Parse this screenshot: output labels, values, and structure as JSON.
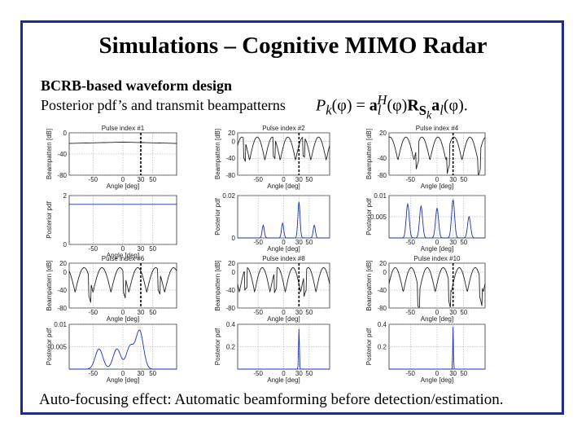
{
  "title": "Simulations – Cognitive MIMO Radar",
  "subtitle_bold": "BCRB-based waveform design",
  "subtitle": "Posterior pdf’s and transmit beampatterns",
  "formula": {
    "lhs_p": "P",
    "lhs_sub": "k",
    "lhs_arg": "(φ) = ",
    "a": "a",
    "a_sup": "H",
    "a_sub": "l",
    "arg1": "(φ)",
    "R": "R",
    "R_sub": "S",
    "R_subsub": "k",
    "a2": "a",
    "a2_sub": "l",
    "arg2": "(φ)",
    "tail": "."
  },
  "caption": "Auto-focusing effect: Automatic beamforming before detection/estimation.",
  "chart_data": [
    {
      "id": "p1-beam",
      "type": "line",
      "title": "Pulse index #1",
      "xlabel": "Angle [deg]",
      "ylabel": "Beampattern [dB]",
      "xlim": [
        -90,
        90
      ],
      "ylim": [
        -80,
        0
      ],
      "xticks": [
        -50,
        0,
        30,
        50
      ],
      "yticks": [
        -80,
        -40,
        0
      ],
      "grid": true
    },
    {
      "id": "p2-beam",
      "type": "line",
      "title": "Pulse index #2",
      "xlabel": "Angle [deg]",
      "ylabel": "Beampattern [dB]",
      "xlim": [
        -90,
        90
      ],
      "ylim": [
        -80,
        20
      ],
      "xticks": [
        -50,
        0,
        30,
        50
      ],
      "yticks": [
        -80,
        -40,
        0,
        20
      ],
      "grid": true
    },
    {
      "id": "p4-beam",
      "type": "line",
      "title": "Pulse index #4",
      "xlabel": "Angle [deg]",
      "ylabel": "Beampattern [dB]",
      "xlim": [
        -90,
        90
      ],
      "ylim": [
        -80,
        20
      ],
      "xticks": [
        -50,
        0,
        30,
        50
      ],
      "yticks": [
        -80,
        -40,
        20
      ],
      "grid": true
    },
    {
      "id": "p1-pdf",
      "type": "line",
      "title": "",
      "xlabel": "Angle [deg]",
      "ylabel": "Posterior pdf",
      "xlim": [
        -90,
        90
      ],
      "ylim": [
        0,
        2
      ],
      "xticks": [
        -50,
        0,
        30,
        50
      ],
      "yticks": [
        0,
        2
      ],
      "grid": true
    },
    {
      "id": "p2-pdf",
      "type": "line",
      "title": "",
      "xlabel": "Angle [deg]",
      "ylabel": "Posterior pdf",
      "xlim": [
        -90,
        90
      ],
      "ylim": [
        0,
        0.02
      ],
      "xticks": [
        -50,
        0,
        30,
        50
      ],
      "yticks": [
        0,
        0.02
      ],
      "grid": true
    },
    {
      "id": "p4-pdf",
      "type": "line",
      "title": "",
      "xlabel": "Angle [deg]",
      "ylabel": "Posterior pdf",
      "xlim": [
        -90,
        90
      ],
      "ylim": [
        0,
        0.01
      ],
      "xticks": [
        -50,
        0,
        30,
        50
      ],
      "yticks": [
        0.005,
        0.01
      ],
      "grid": true
    },
    {
      "id": "p6-beam",
      "type": "line",
      "title": "Pulse index #6",
      "xlabel": "Angle [deg]",
      "ylabel": "Beampattern [dB]",
      "xlim": [
        -90,
        90
      ],
      "ylim": [
        -80,
        20
      ],
      "xticks": [
        -50,
        0,
        30,
        50
      ],
      "yticks": [
        -80,
        -40,
        0,
        20
      ],
      "grid": true
    },
    {
      "id": "p8-beam",
      "type": "line",
      "title": "Pulse index #8",
      "xlabel": "Angle [deg]",
      "ylabel": "Beampattern [dB]",
      "xlim": [
        -90,
        90
      ],
      "ylim": [
        -80,
        20
      ],
      "xticks": [
        -50,
        0,
        30,
        50
      ],
      "yticks": [
        -80,
        -40,
        0,
        20
      ],
      "grid": true
    },
    {
      "id": "p10-beam",
      "type": "line",
      "title": "Pulse index #10",
      "xlabel": "Angle [deg]",
      "ylabel": "Beampattern [dB]",
      "xlim": [
        -90,
        90
      ],
      "ylim": [
        -80,
        20
      ],
      "xticks": [
        -50,
        0,
        30,
        50
      ],
      "yticks": [
        -80,
        -40,
        0,
        20
      ],
      "grid": true
    },
    {
      "id": "p6-pdf",
      "type": "line",
      "title": "",
      "xlabel": "Angle [deg]",
      "ylabel": "Posterior pdf",
      "xlim": [
        -90,
        90
      ],
      "ylim": [
        0,
        0.01
      ],
      "xticks": [
        -50,
        0,
        30,
        50
      ],
      "yticks": [
        0.005,
        0.01
      ],
      "grid": true
    },
    {
      "id": "p8-pdf",
      "type": "line",
      "title": "",
      "xlabel": "Angle [deg]",
      "ylabel": "Posterior pdf",
      "xlim": [
        -90,
        90
      ],
      "ylim": [
        0,
        0.4
      ],
      "xticks": [
        -50,
        0,
        30,
        50
      ],
      "yticks": [
        0.2,
        0.4
      ],
      "grid": true
    },
    {
      "id": "p10-pdf",
      "type": "line",
      "title": "",
      "xlabel": "Angle [deg]",
      "ylabel": "Posterior pdf",
      "xlim": [
        -90,
        90
      ],
      "ylim": [
        0,
        0.4
      ],
      "xticks": [
        -50,
        0,
        30,
        50
      ],
      "yticks": [
        0.2,
        0.4
      ],
      "grid": true
    }
  ],
  "colors": {
    "frame": "#1f2b8f",
    "pdf_line": "#1a2fb8",
    "beam_line": "#222222",
    "grid": "#999999"
  }
}
